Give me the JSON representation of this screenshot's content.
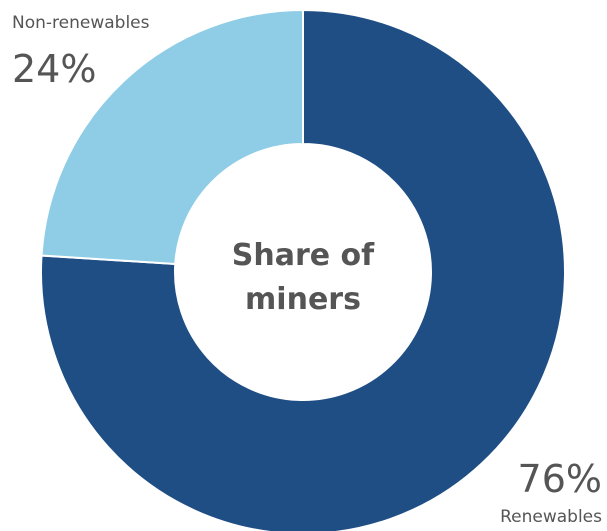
{
  "chart_data": {
    "type": "pie",
    "style": "donut",
    "center_label_line1": "Share of",
    "center_label_line2": "miners",
    "slices": [
      {
        "label": "Renewables",
        "value": 76,
        "value_label": "76%",
        "color": "#1f4e85"
      },
      {
        "label": "Non-renewables",
        "value": 24,
        "value_label": "24%",
        "color": "#8fcde6"
      }
    ]
  }
}
